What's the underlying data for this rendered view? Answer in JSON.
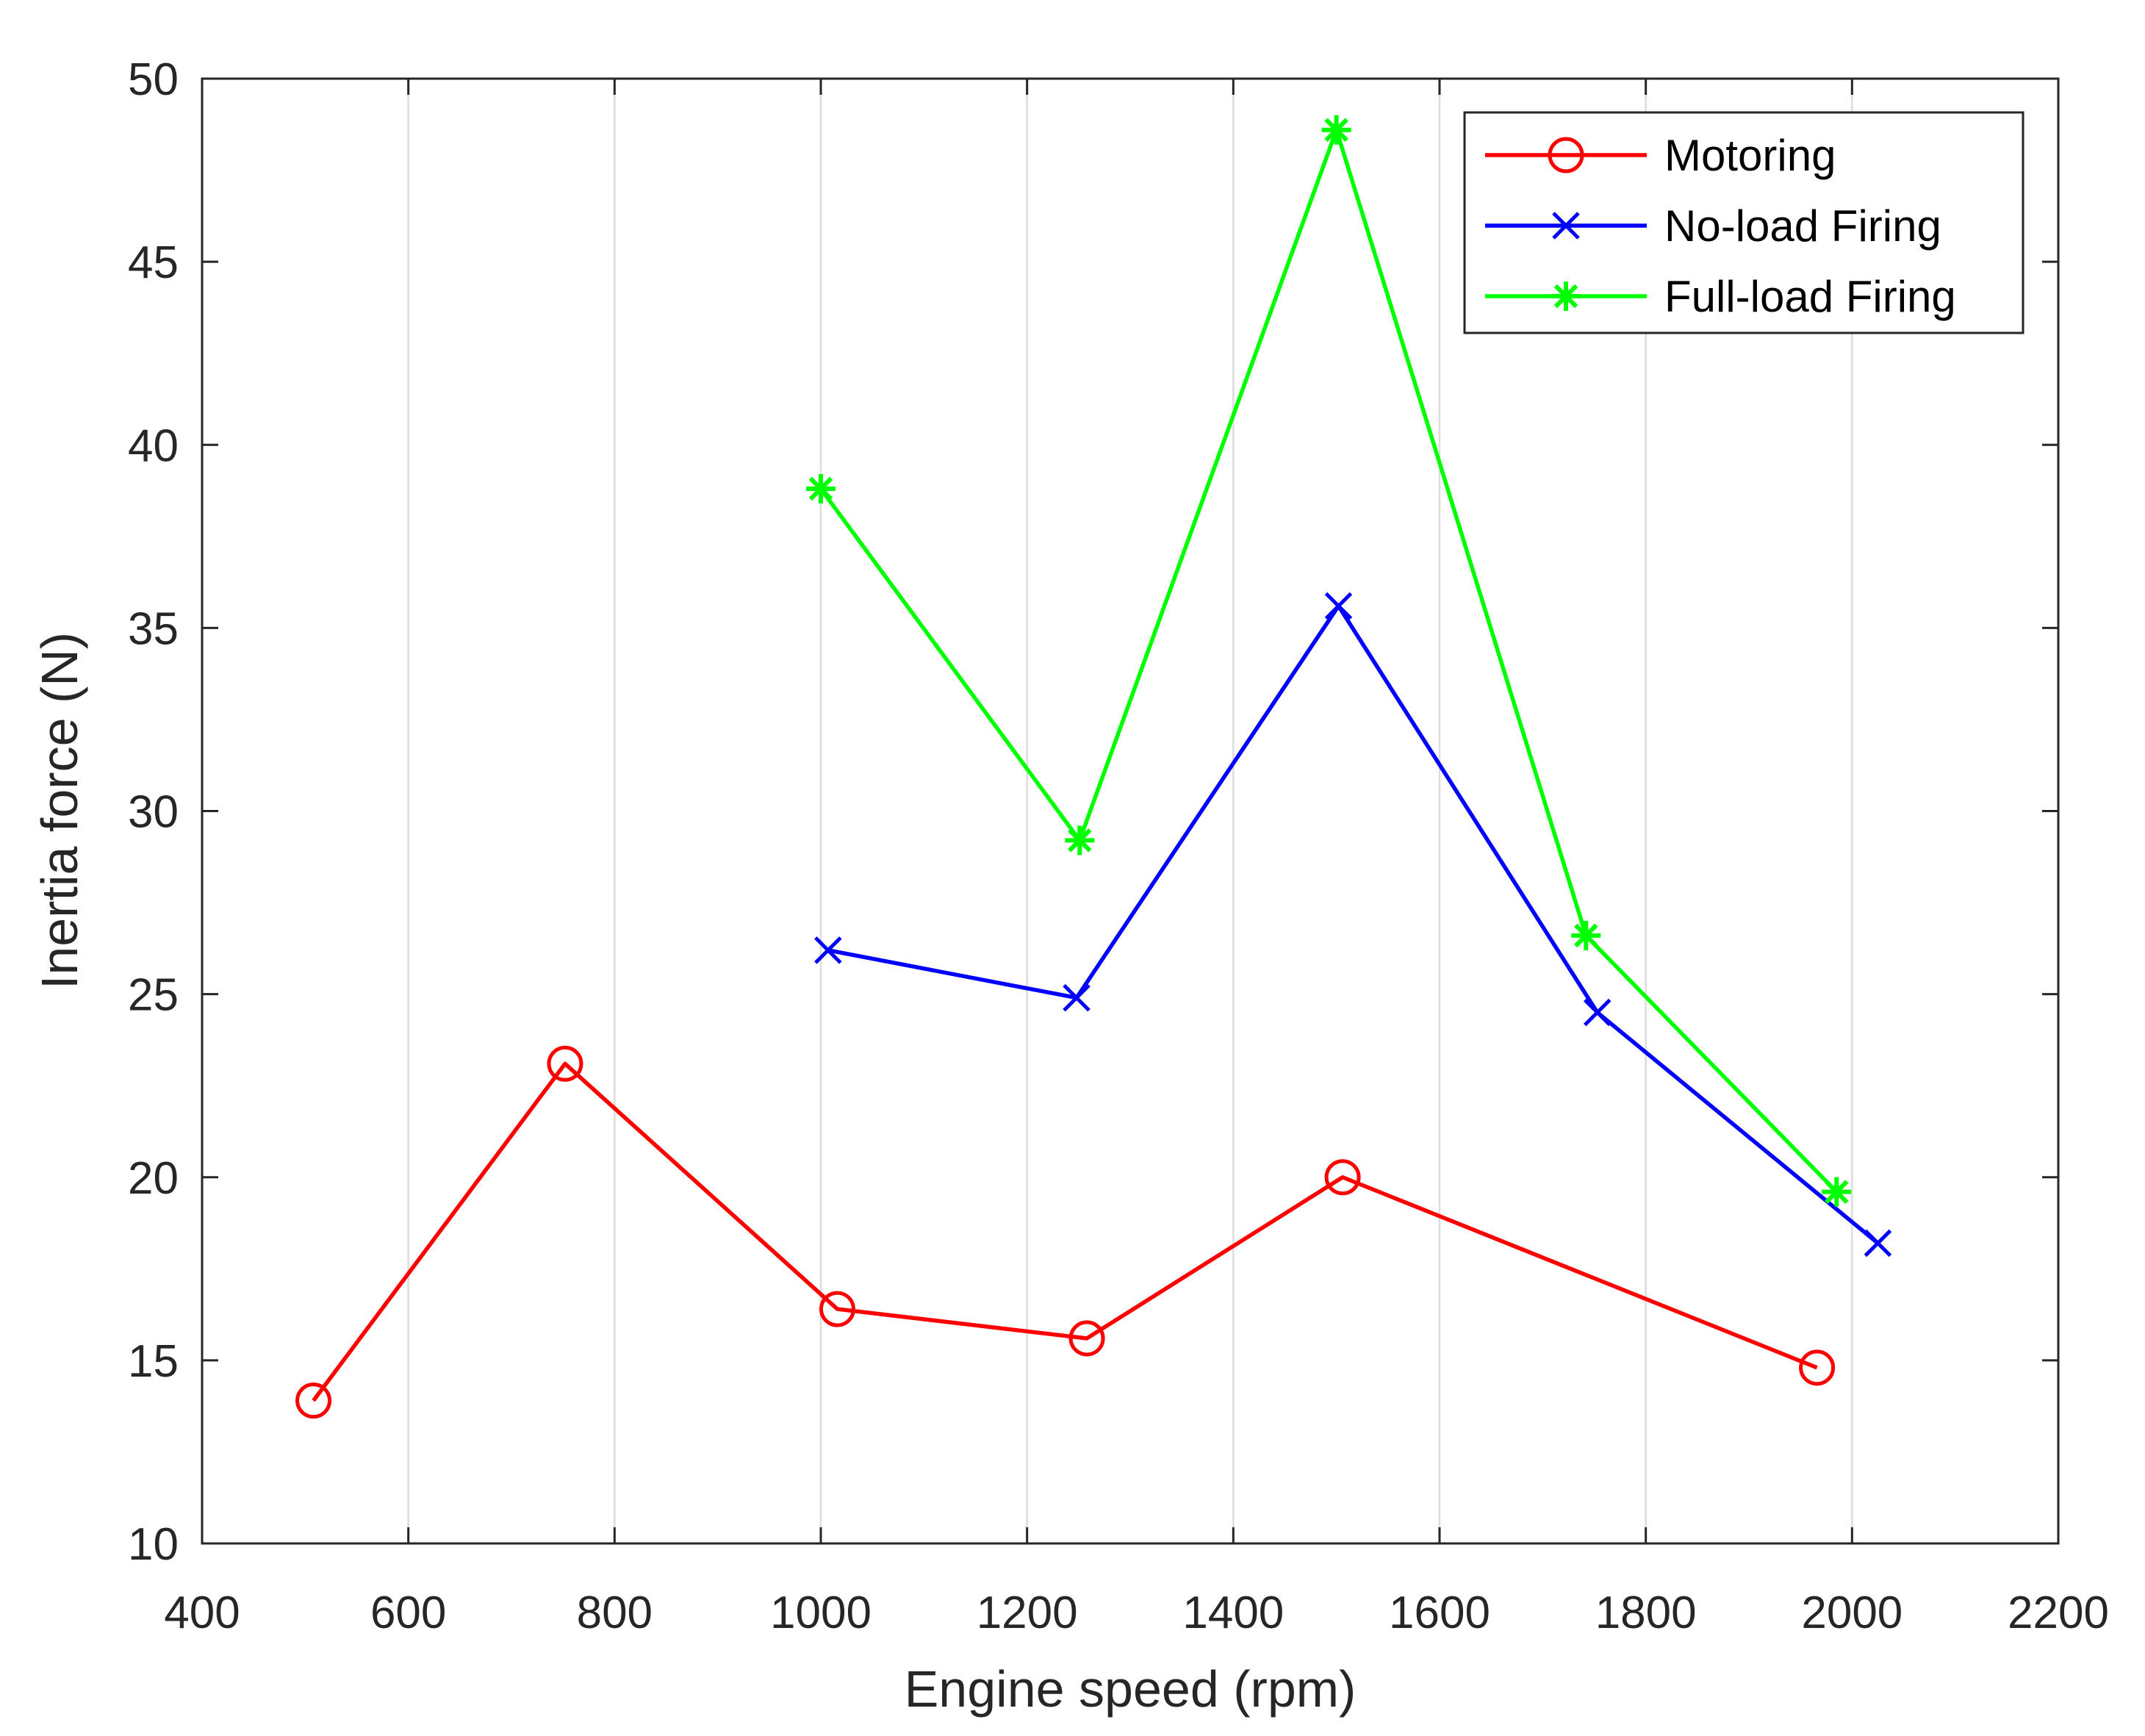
{
  "chart_data": {
    "type": "line",
    "title": "",
    "xlabel": "Engine speed (rpm)",
    "ylabel": "Inertia force (N)",
    "xlim": [
      400,
      2200
    ],
    "ylim": [
      10,
      50
    ],
    "xticks": [
      400,
      600,
      800,
      1000,
      1200,
      1400,
      1600,
      1800,
      2000,
      2200
    ],
    "yticks": [
      10,
      15,
      20,
      25,
      30,
      35,
      40,
      45,
      50
    ],
    "grid": "vertical",
    "legend_position": "top-right",
    "series": [
      {
        "name": "Motoring",
        "color": "#ff0000",
        "marker": "circle",
        "x": [
          508,
          752,
          1016,
          1258,
          1506,
          1966
        ],
        "y": [
          13.9,
          23.1,
          16.4,
          15.6,
          20.0,
          14.8
        ]
      },
      {
        "name": "No-load Firing",
        "color": "#0000ff",
        "marker": "x",
        "x": [
          1007,
          1248,
          1502,
          1753,
          2025
        ],
        "y": [
          26.2,
          24.9,
          35.6,
          24.5,
          18.2
        ]
      },
      {
        "name": "Full-load Firing",
        "color": "#00ff00",
        "marker": "asterisk",
        "x": [
          1000,
          1251,
          1500,
          1742,
          1985
        ],
        "y": [
          38.8,
          29.2,
          48.6,
          26.6,
          19.6
        ]
      }
    ]
  }
}
